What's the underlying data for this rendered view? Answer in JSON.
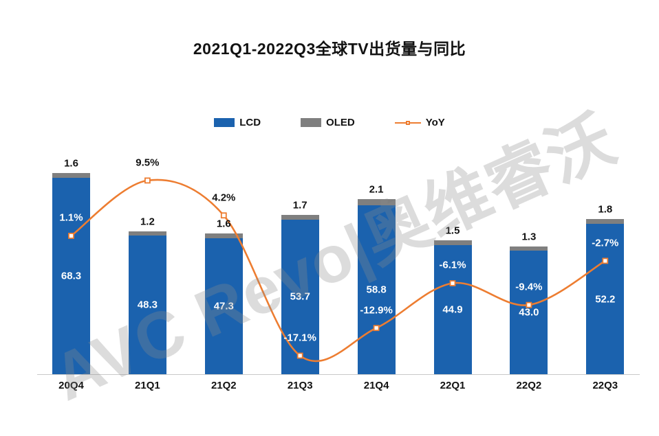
{
  "title": "2021Q1-2022Q3全球TV出货量与同比",
  "watermark": "AVC Revo|奥维睿沃",
  "legend": [
    {
      "label": "LCD",
      "color": "#1b62ae",
      "type": "bar"
    },
    {
      "label": "OLED",
      "color": "#7f7f7f",
      "type": "bar"
    },
    {
      "label": "YoY",
      "color": "#ed7d31",
      "type": "line"
    }
  ],
  "chart_data": {
    "type": "bar",
    "subtype": "stacked-bars-with-line",
    "title": "2021Q1-2022Q3全球TV出货量与同比",
    "categories": [
      "20Q4",
      "21Q1",
      "21Q2",
      "21Q3",
      "21Q4",
      "22Q1",
      "22Q2",
      "22Q3"
    ],
    "series": [
      {
        "name": "LCD",
        "type": "bar",
        "stack": "shipments",
        "color": "#1b62ae",
        "values": [
          68.3,
          48.3,
          47.3,
          53.7,
          58.8,
          44.9,
          43.0,
          52.2
        ],
        "value_labels": [
          "68.3",
          "48.3",
          "47.3",
          "53.7",
          "58.8",
          "44.9",
          "43.0",
          "52.2"
        ],
        "label_color": "#ffffff"
      },
      {
        "name": "OLED",
        "type": "bar",
        "stack": "shipments",
        "color": "#7f7f7f",
        "values": [
          1.6,
          1.2,
          1.6,
          1.7,
          2.1,
          1.5,
          1.3,
          1.8
        ],
        "value_labels": [
          "1.6",
          "1.2",
          "1.6",
          "1.7",
          "2.1",
          "1.5",
          "1.3",
          "1.8"
        ],
        "label_color": "#121212"
      },
      {
        "name": "YoY",
        "type": "line",
        "color": "#ed7d31",
        "values": [
          1.1,
          9.5,
          4.2,
          -17.1,
          -12.9,
          -6.1,
          -9.4,
          -2.7
        ],
        "value_labels": [
          "1.1%",
          "9.5%",
          "4.2%",
          "-17.1%",
          "-12.9%",
          "-6.1%",
          "-9.4%",
          "-2.7%"
        ],
        "marker": "square-white-fill"
      }
    ],
    "bar_axis_range": [
      0,
      75
    ],
    "line_axis_range_pct": [
      -20,
      15
    ],
    "value_axis_visible": false,
    "grid": false,
    "legend_position": "top-center"
  }
}
